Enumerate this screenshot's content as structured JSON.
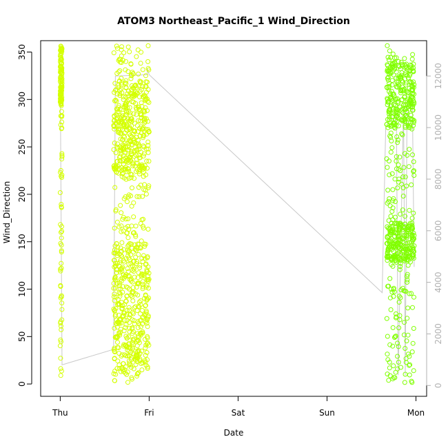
{
  "chart_data": {
    "type": "scatter",
    "title": "ATOM3 Northeast_Pacific_1 Wind_Direction",
    "xlabel": "Date",
    "ylabel": "Wind_Direction",
    "x_ticks": [
      "Thu",
      "Fri",
      "Sat",
      "Sun",
      "Mon"
    ],
    "x_tick_days": [
      0,
      1,
      2,
      3,
      4
    ],
    "xlim_days": [
      -0.22,
      4.12
    ],
    "y_ticks": [
      0,
      50,
      100,
      150,
      200,
      250,
      300,
      350
    ],
    "ylim": [
      -13,
      362
    ],
    "y2_ticks": [
      0,
      2000,
      4000,
      6000,
      8000,
      10000,
      12000
    ],
    "y2lim": [
      -420,
      13370
    ],
    "grid": false,
    "colors": {
      "points_early": "#d4ff00",
      "points_late": "#80ff00",
      "altitude_line": "#c8c8c8",
      "axis": "#000000",
      "right_axis": "#b0b0b0"
    },
    "series": [
      {
        "kind": "points",
        "clusters": [
          {
            "color": "#d4ff00",
            "x": [
              0.0,
              0.02
            ],
            "y": [
              0,
              357
            ],
            "dense": [
              [
                295,
                357
              ]
            ],
            "n": 160
          },
          {
            "color": "#d4ff00",
            "x": [
              0.6,
              1.0
            ],
            "y": [
              0,
              357
            ],
            "dense": [
              [
                10,
                150
              ],
              [
                220,
                320
              ]
            ],
            "n": 900
          },
          {
            "color": "#80ff00",
            "x": [
              3.67,
              3.98
            ],
            "y": [
              0,
              357
            ],
            "dense": [
              [
                270,
                340
              ],
              [
                130,
                170
              ]
            ],
            "n": 650
          }
        ]
      },
      {
        "kind": "line",
        "axis": "right",
        "points": [
          [
            0.0,
            12050
          ],
          [
            0.0,
            12050
          ],
          [
            0.02,
            800
          ],
          [
            0.6,
            1400
          ],
          [
            0.62,
            12000
          ],
          [
            0.98,
            12050
          ],
          [
            0.98,
            12300
          ],
          [
            1.0,
            12050
          ],
          [
            3.62,
            3600
          ],
          [
            3.66,
            10000
          ],
          [
            3.74,
            10200
          ],
          [
            3.78,
            10600
          ],
          [
            3.8,
            400
          ],
          [
            3.86,
            10800
          ],
          [
            3.88,
            400
          ],
          [
            3.9,
            11000
          ],
          [
            3.96,
            10800
          ],
          [
            3.98,
            4600
          ]
        ]
      }
    ]
  }
}
